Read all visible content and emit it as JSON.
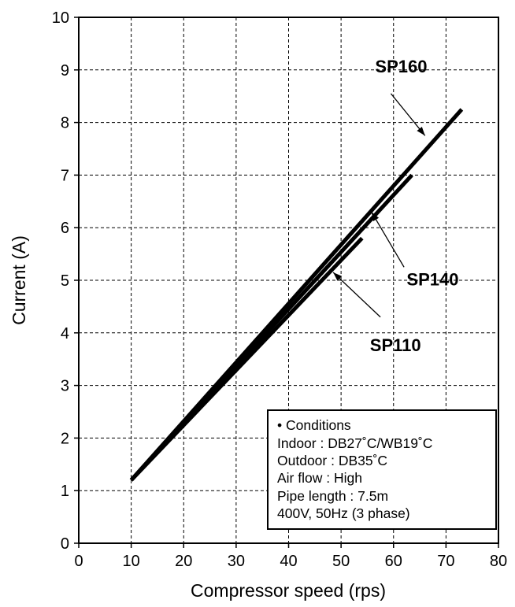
{
  "chart_data": {
    "type": "line",
    "xlabel": "Compressor speed (rps)",
    "ylabel": "Current (A)",
    "xlim": [
      0,
      80
    ],
    "ylim": [
      0,
      10
    ],
    "xticks": [
      "0",
      "10",
      "20",
      "30",
      "40",
      "50",
      "60",
      "70",
      "80"
    ],
    "yticks": [
      "0",
      "1",
      "2",
      "3",
      "4",
      "5",
      "6",
      "7",
      "8",
      "9",
      "10"
    ],
    "grid": true,
    "series": [
      {
        "name": "SP160",
        "x": [
          10,
          73
        ],
        "y": [
          1.2,
          8.25
        ]
      },
      {
        "name": "SP140",
        "x": [
          10,
          63.5
        ],
        "y": [
          1.2,
          7.0
        ]
      },
      {
        "name": "SP110",
        "x": [
          10,
          54
        ],
        "y": [
          1.2,
          5.8
        ]
      }
    ],
    "annotations": [
      {
        "label": "SP160",
        "text_at": [
          56.5,
          8.95
        ],
        "arrow_from": [
          59.5,
          8.55
        ],
        "arrow_to": [
          66,
          7.75
        ]
      },
      {
        "label": "SP140",
        "text_at": [
          62.5,
          4.9
        ],
        "arrow_from": [
          62,
          5.25
        ],
        "arrow_to": [
          55.8,
          6.3
        ]
      },
      {
        "label": "SP110",
        "text_at": [
          55.5,
          3.65
        ],
        "arrow_from": [
          57.5,
          4.3
        ],
        "arrow_to": [
          48.5,
          5.15
        ]
      }
    ]
  },
  "conditions": {
    "lines": [
      "• Conditions",
      "Indoor : DB27˚C/WB19˚C",
      "Outdoor : DB35˚C",
      "Air flow : High",
      "Pipe length : 7.5m",
      "400V, 50Hz (3 phase)"
    ]
  }
}
